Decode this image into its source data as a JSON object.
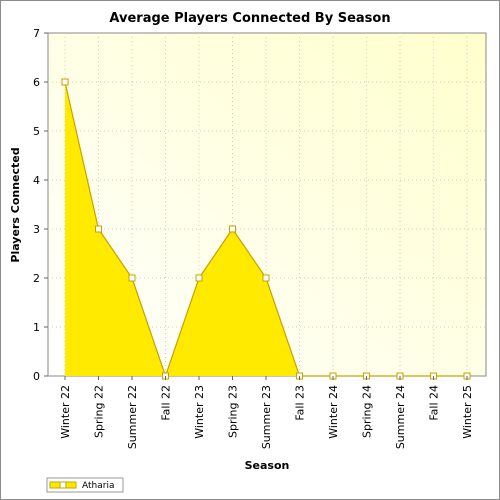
{
  "chart_data": {
    "type": "area",
    "title": "Average Players Connected By Season",
    "xlabel": "Season",
    "ylabel": "Players Connected",
    "categories": [
      "Winter 22",
      "Spring 22",
      "Summer 22",
      "Fall 22",
      "Winter 23",
      "Spring 23",
      "Summer 23",
      "Fall 23",
      "Winter 24",
      "Spring 24",
      "Summer 24",
      "Fall 24",
      "Winter 25"
    ],
    "series": [
      {
        "name": "Atharia",
        "values": [
          6,
          3,
          2,
          0,
          2,
          3,
          2,
          0,
          0,
          0,
          0,
          0,
          0
        ],
        "color": "#ffea00",
        "line_color": "#c9a100"
      }
    ],
    "ylim": [
      0,
      7
    ],
    "yticks": [
      "0",
      "1",
      "2",
      "3",
      "4",
      "5",
      "6",
      "7"
    ],
    "grid": true,
    "legend_position": "bottom-left",
    "background_gradient": [
      "#ffffff",
      "#ffffcc"
    ]
  }
}
